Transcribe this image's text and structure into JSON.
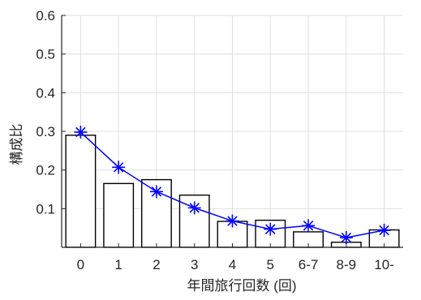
{
  "chart_data": {
    "type": "bar",
    "categories": [
      "0",
      "1",
      "2",
      "3",
      "4",
      "5",
      "6-7",
      "8-9",
      "10-"
    ],
    "title": "",
    "xlabel": "年間旅行回数 (回)",
    "ylabel": "構成比",
    "ylim": [
      0,
      0.6
    ],
    "yticks": [
      "0.1",
      "0.2",
      "0.3",
      "0.4",
      "0.5",
      "0.6"
    ],
    "grid": true,
    "series": [
      {
        "type": "bar",
        "values": [
          0.29,
          0.165,
          0.175,
          0.135,
          0.067,
          0.07,
          0.04,
          0.013,
          0.045
        ],
        "fill": "#ffffff",
        "edge": "#000000"
      },
      {
        "type": "line",
        "marker": "asterisk",
        "values": [
          0.298,
          0.207,
          0.144,
          0.102,
          0.068,
          0.047,
          0.056,
          0.025,
          0.044
        ],
        "color": "#0000ff"
      }
    ]
  }
}
